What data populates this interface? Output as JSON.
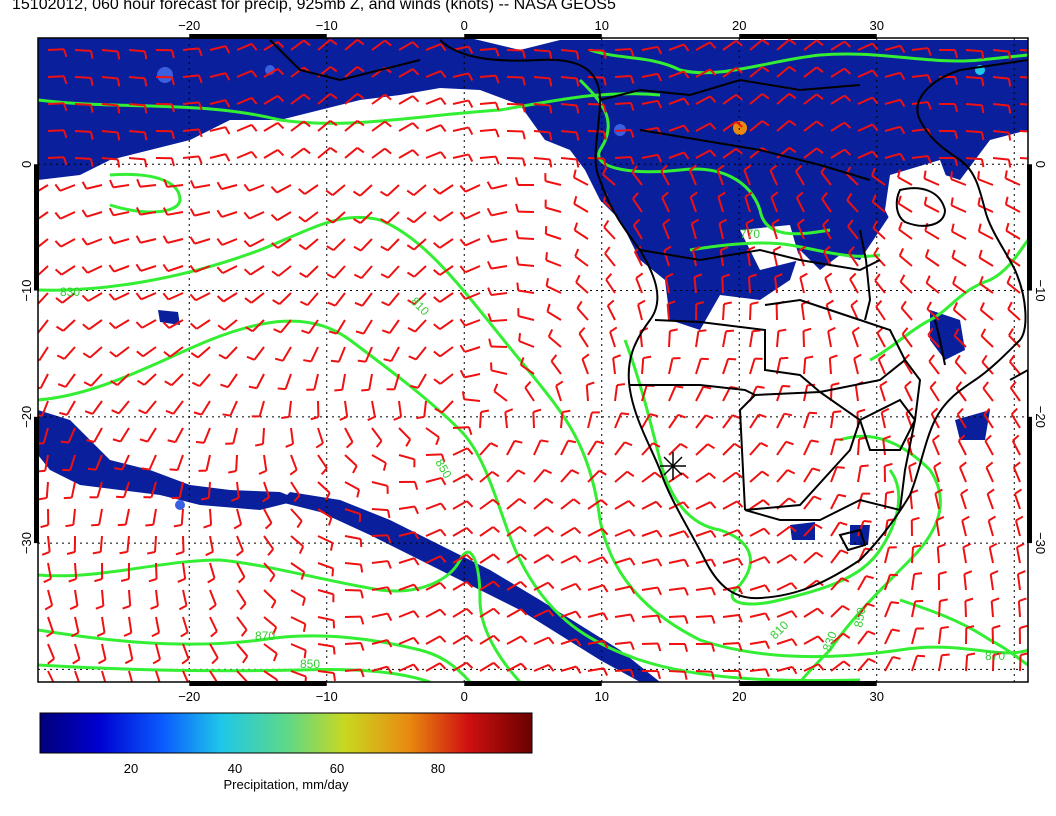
{
  "title": "15102012, 060 hour forecast for precip, 925mb Z, and winds (knots) -- NASA GEOS5",
  "map": {
    "lon_range": [
      -31,
      41
    ],
    "lat_range": [
      -41,
      10
    ],
    "lon_ticks": [
      "−20",
      "−10",
      "0",
      "10",
      "20",
      "30"
    ],
    "lat_ticks": [
      "0",
      "−10",
      "−20",
      "−30"
    ],
    "contour_labels": [
      "770",
      "810",
      "830",
      "850",
      "870",
      "850",
      "830",
      "810",
      "850",
      "870"
    ],
    "colors": {
      "precip": "#0a1f9c",
      "precip_light": "#3a5fe0",
      "contour": "#33ee33",
      "wind": "#ee1111",
      "border": "#000000"
    }
  },
  "colorbar": {
    "ticks": [
      "20",
      "40",
      "60",
      "80"
    ],
    "label": "Precipitation, mm/day",
    "min": 0,
    "max": 100
  }
}
